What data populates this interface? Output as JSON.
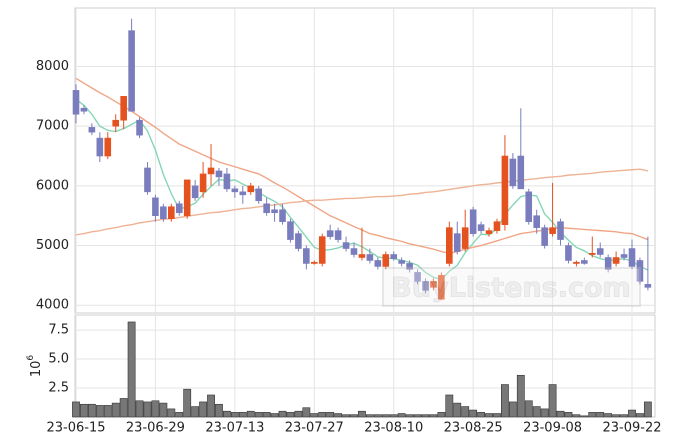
{
  "chart_data": [
    {
      "type": "candlestick",
      "ylim": [
        3870,
        8980
      ],
      "yticks": [
        4000,
        5000,
        6000,
        7000,
        8000
      ],
      "grid": true,
      "up_color": "#e4521f",
      "down_color": "#7a7dbd",
      "open": [
        7600,
        7300,
        6980,
        6800,
        6500,
        7000,
        7100,
        8600,
        7100,
        6300,
        5800,
        5650,
        5450,
        5700,
        5500,
        6000,
        5900,
        6200,
        6250,
        6200,
        5950,
        5900,
        5900,
        5950,
        5700,
        5600,
        5600,
        5400,
        5200,
        4950,
        4700,
        4700,
        5250,
        5250,
        5050,
        4950,
        4800,
        4850,
        4750,
        4650,
        4850,
        4750,
        4700,
        4550,
        4400,
        4300,
        4100,
        4700,
        5200,
        4950,
        5600,
        5350,
        5200,
        5250,
        5350,
        6450,
        6500,
        5900,
        5500,
        5300,
        5200,
        5400,
        5000,
        4700,
        4750,
        4850,
        4950,
        4800,
        4700,
        4850,
        4950,
        4750,
        4350
      ],
      "high": [
        7700,
        7350,
        7050,
        6900,
        6900,
        7200,
        7500,
        8800,
        7150,
        6400,
        5850,
        5700,
        5700,
        5750,
        6100,
        6100,
        6400,
        6700,
        6300,
        6300,
        6000,
        6000,
        6050,
        6000,
        5800,
        5700,
        5700,
        5450,
        5250,
        5000,
        4750,
        5200,
        5350,
        5300,
        5150,
        5050,
        5300,
        4950,
        4800,
        4900,
        4900,
        4800,
        4750,
        4600,
        4450,
        4450,
        4550,
        5400,
        5400,
        5600,
        5650,
        5400,
        5300,
        5450,
        6850,
        6550,
        7300,
        5950,
        5600,
        5350,
        6050,
        5450,
        5050,
        4750,
        4800,
        5150,
        5050,
        4850,
        4900,
        4950,
        5100,
        4800,
        5150
      ],
      "low": [
        7050,
        7200,
        6850,
        6400,
        6450,
        6900,
        6950,
        7250,
        6800,
        5850,
        5400,
        5400,
        5400,
        5500,
        5450,
        5750,
        5800,
        6000,
        6000,
        5900,
        5800,
        5700,
        5850,
        5700,
        5500,
        5400,
        5350,
        5050,
        4900,
        4600,
        4680,
        4650,
        5100,
        5050,
        4900,
        4800,
        4750,
        4700,
        4600,
        4600,
        4750,
        4650,
        4550,
        4350,
        4200,
        4250,
        4100,
        4650,
        4850,
        4900,
        5150,
        5200,
        5150,
        5200,
        5250,
        5950,
        5950,
        5350,
        5200,
        4950,
        5150,
        5000,
        4700,
        4650,
        4680,
        4800,
        4800,
        4550,
        4650,
        4750,
        4600,
        4350,
        4250
      ],
      "close": [
        7200,
        7250,
        6900,
        6500,
        6800,
        7100,
        7500,
        7250,
        6850,
        5900,
        5500,
        5450,
        5650,
        5550,
        6100,
        5800,
        6200,
        6300,
        6150,
        5950,
        5900,
        5850,
        6000,
        5750,
        5550,
        5550,
        5400,
        5100,
        4950,
        4700,
        4720,
        5150,
        5150,
        5100,
        4950,
        4850,
        4850,
        4750,
        4650,
        4850,
        4780,
        4700,
        4600,
        4400,
        4250,
        4400,
        4500,
        5300,
        4900,
        5300,
        5200,
        5250,
        5250,
        5400,
        6500,
        6000,
        5950,
        5400,
        5300,
        5000,
        5300,
        5100,
        4750,
        4720,
        4700,
        4870,
        4850,
        4600,
        4800,
        4800,
        4650,
        4400,
        4300
      ],
      "lines": [
        {
          "color": "#86d6b6",
          "values": [
            7450,
            7350,
            7200,
            7000,
            6930,
            6910,
            6960,
            7030,
            7100,
            6920,
            6600,
            6190,
            5870,
            5610,
            5650,
            5710,
            5860,
            5990,
            6110,
            6080,
            6100,
            6030,
            5970,
            5890,
            5810,
            5740,
            5650,
            5470,
            5310,
            5140,
            4970,
            4920,
            4930,
            4960,
            5010,
            5040,
            4980,
            4900,
            4810,
            4790,
            4780,
            4750,
            4720,
            4670,
            4550,
            4470,
            4430,
            4570,
            4670,
            4880,
            5040,
            5190,
            5180,
            5280,
            5520,
            5680,
            5820,
            5850,
            5830,
            5530,
            5390,
            5220,
            5090,
            4970,
            4910,
            4830,
            4780,
            4750,
            4760,
            4780,
            4740,
            4650,
            4590
          ]
        },
        {
          "color": "#f0a585",
          "values": [
            7800,
            7720,
            7640,
            7560,
            7490,
            7410,
            7330,
            7250,
            7160,
            7070,
            6980,
            6880,
            6790,
            6700,
            6640,
            6580,
            6520,
            6460,
            6400,
            6360,
            6320,
            6280,
            6240,
            6200,
            6130,
            6050,
            5980,
            5900,
            5820,
            5740,
            5660,
            5580,
            5500,
            5440,
            5380,
            5320,
            5260,
            5200,
            5170,
            5130,
            5100,
            5070,
            5030,
            5000,
            4970,
            4940,
            4900,
            4870,
            4900,
            4940,
            4970,
            5000,
            5040,
            5080,
            5120,
            5160,
            5200,
            5220,
            5240,
            5260,
            5280,
            5300,
            5290,
            5280,
            5270,
            5260,
            5250,
            5240,
            5230,
            5210,
            5200,
            5150,
            5100
          ]
        },
        {
          "color": "#eeb394",
          "values": [
            5180,
            5200,
            5230,
            5250,
            5280,
            5300,
            5330,
            5350,
            5380,
            5400,
            5420,
            5440,
            5450,
            5470,
            5490,
            5510,
            5530,
            5550,
            5560,
            5580,
            5600,
            5620,
            5630,
            5650,
            5670,
            5680,
            5700,
            5720,
            5730,
            5750,
            5760,
            5760,
            5770,
            5780,
            5790,
            5790,
            5800,
            5810,
            5820,
            5820,
            5830,
            5840,
            5860,
            5870,
            5890,
            5900,
            5920,
            5940,
            5960,
            5980,
            6000,
            6020,
            6030,
            6050,
            6060,
            6080,
            6090,
            6110,
            6120,
            6140,
            6150,
            6160,
            6180,
            6190,
            6200,
            6210,
            6230,
            6240,
            6250,
            6260,
            6270,
            6280,
            6250
          ]
        }
      ],
      "watermark": "BuyListens.com"
    },
    {
      "type": "bar",
      "ylim": [
        0,
        8.8
      ],
      "yticks": [
        2.5,
        {
          "value": 5,
          "label": "5.0"
        },
        7.5
      ],
      "grid": true,
      "y_label_base": "10",
      "y_label_exponent": "6",
      "color": "#777777",
      "categories": [
        "23-06-15",
        null,
        null,
        null,
        null,
        null,
        null,
        null,
        null,
        null,
        "23-06-29",
        null,
        null,
        null,
        null,
        null,
        null,
        null,
        null,
        null,
        "23-07-13",
        null,
        null,
        null,
        null,
        null,
        null,
        null,
        null,
        null,
        "23-07-27",
        null,
        null,
        null,
        null,
        null,
        null,
        null,
        null,
        null,
        "23-08-10",
        null,
        null,
        null,
        null,
        null,
        null,
        null,
        null,
        null,
        "23-08-25",
        null,
        null,
        null,
        null,
        null,
        null,
        null,
        null,
        null,
        "23-09-08",
        null,
        null,
        null,
        null,
        null,
        null,
        null,
        null,
        null,
        "23-09-22",
        null,
        null
      ],
      "values": [
        1.3,
        1.1,
        1.1,
        1.0,
        1.0,
        1.2,
        1.6,
        8.2,
        1.4,
        1.3,
        1.4,
        1.2,
        0.7,
        0.4,
        2.4,
        0.9,
        1.3,
        1.9,
        1.1,
        0.5,
        0.4,
        0.4,
        0.5,
        0.4,
        0.4,
        0.3,
        0.5,
        0.4,
        0.5,
        0.8,
        0.3,
        0.4,
        0.4,
        0.3,
        0.2,
        0.2,
        0.5,
        0.2,
        0.2,
        0.2,
        0.2,
        0.3,
        0.2,
        0.2,
        0.2,
        0.2,
        0.4,
        1.9,
        1.2,
        0.9,
        0.6,
        0.4,
        0.3,
        0.3,
        2.8,
        1.3,
        3.6,
        1.4,
        0.9,
        0.7,
        2.8,
        0.5,
        0.4,
        0.2,
        0.1,
        0.4,
        0.4,
        0.3,
        0.2,
        0.2,
        0.6,
        0.3,
        1.3
      ]
    }
  ]
}
